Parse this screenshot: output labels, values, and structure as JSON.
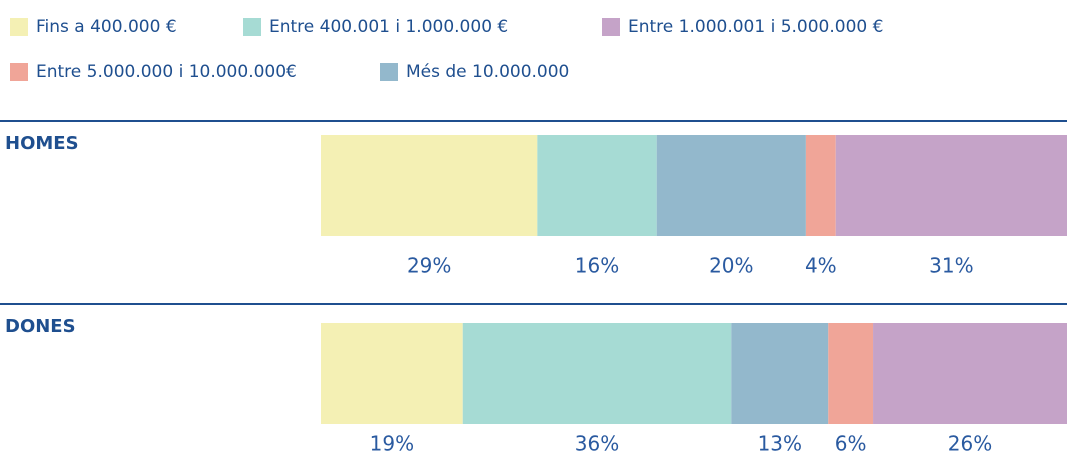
{
  "chart_data": {
    "type": "stacked_barh",
    "categories": [
      "HOMES",
      "DONES"
    ],
    "series": [
      {
        "name": "Fins a 400.000 €",
        "color": "#f4f0b4",
        "values": [
          29,
          19
        ],
        "value_labels": [
          "29%",
          "19%"
        ]
      },
      {
        "name": "Entre 400.001 i 1.000.000 €",
        "color": "#a6dbd4",
        "values": [
          16,
          36
        ],
        "value_labels": [
          "16%",
          "36%"
        ]
      },
      {
        "name": "Més de 10.000.000",
        "color": "#93b8cc",
        "values": [
          20,
          13
        ],
        "value_labels": [
          "20%",
          "13%"
        ]
      },
      {
        "name": "Entre 5.000.000 i 10.000.000€",
        "color": "#f0a598",
        "values": [
          4,
          6
        ],
        "value_labels": [
          "4%",
          "6%"
        ]
      },
      {
        "name": "Entre 1.000.001 i 5.000.000 €",
        "color": "#c5a3c8",
        "values": [
          31,
          26
        ],
        "value_labels": [
          "31%",
          "26%"
        ]
      }
    ]
  }
}
